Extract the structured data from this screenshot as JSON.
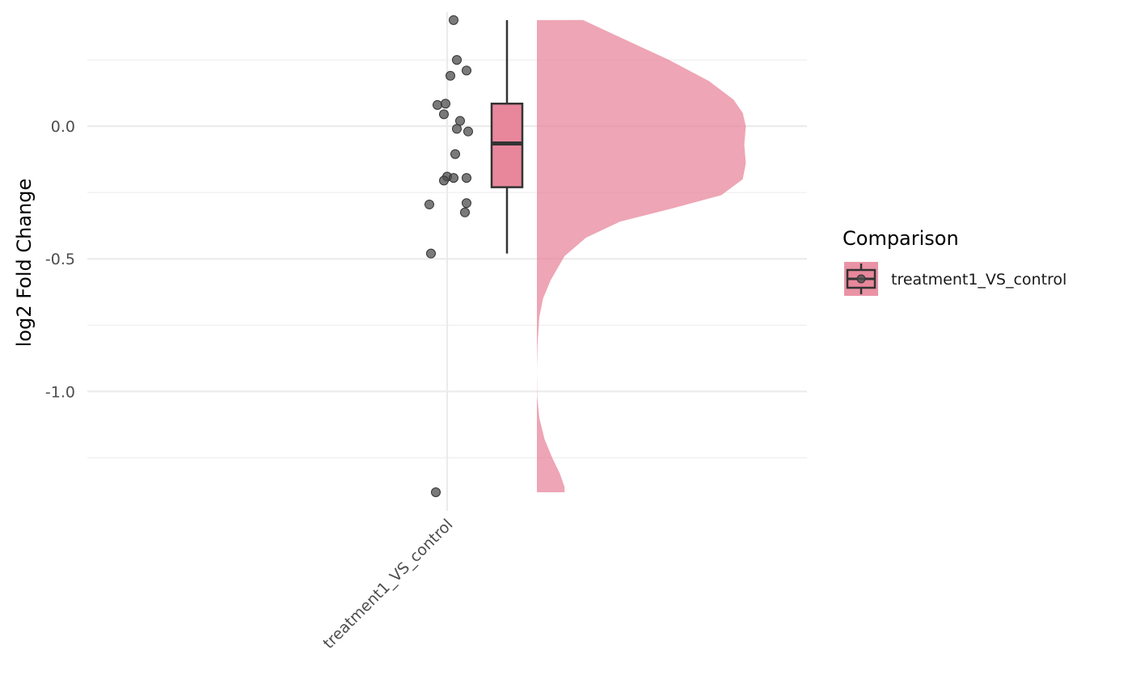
{
  "chart_data": {
    "type": "raincloud",
    "title": "",
    "xlabel": "",
    "ylabel": "log2 Fold Change",
    "ylim": [
      -1.45,
      0.43
    ],
    "y_ticks": [
      {
        "value": 0.0,
        "label": "0.0"
      },
      {
        "value": -0.5,
        "label": "-0.5"
      },
      {
        "value": -1.0,
        "label": "-1.0"
      }
    ],
    "y_minor_ticks": [
      0.25,
      -0.25,
      -0.75,
      -1.25
    ],
    "grid": true,
    "categories": [
      "treatment1_VS_control"
    ],
    "series": [
      {
        "name": "treatment1_VS_control",
        "color": "#e8879c",
        "points": [
          {
            "x": 0.02,
            "y": 0.4
          },
          {
            "x": 0.03,
            "y": 0.25
          },
          {
            "x": 0.06,
            "y": 0.21
          },
          {
            "x": 0.01,
            "y": 0.19
          },
          {
            "x": -0.03,
            "y": 0.08
          },
          {
            "x": -0.005,
            "y": 0.085
          },
          {
            "x": -0.01,
            "y": 0.045
          },
          {
            "x": 0.04,
            "y": 0.02
          },
          {
            "x": 0.03,
            "y": -0.01
          },
          {
            "x": 0.065,
            "y": -0.02
          },
          {
            "x": 0.025,
            "y": -0.105
          },
          {
            "x": 0.0,
            "y": -0.19
          },
          {
            "x": 0.02,
            "y": -0.195
          },
          {
            "x": 0.06,
            "y": -0.195
          },
          {
            "x": -0.01,
            "y": -0.205
          },
          {
            "x": 0.06,
            "y": -0.29
          },
          {
            "x": -0.055,
            "y": -0.295
          },
          {
            "x": 0.055,
            "y": -0.325
          },
          {
            "x": -0.05,
            "y": -0.48
          },
          {
            "x": -0.035,
            "y": -1.38
          }
        ],
        "box": {
          "min": -0.48,
          "q1": -0.23,
          "median": -0.065,
          "q3": 0.085,
          "max": 0.4
        },
        "density": [
          {
            "y": 0.4,
            "w": 0.15
          },
          {
            "y": 0.33,
            "w": 0.28
          },
          {
            "y": 0.25,
            "w": 0.43
          },
          {
            "y": 0.17,
            "w": 0.56
          },
          {
            "y": 0.1,
            "w": 0.64
          },
          {
            "y": 0.05,
            "w": 0.67
          },
          {
            "y": 0.0,
            "w": 0.68
          },
          {
            "y": -0.07,
            "w": 0.675
          },
          {
            "y": -0.14,
            "w": 0.68
          },
          {
            "y": -0.2,
            "w": 0.67
          },
          {
            "y": -0.26,
            "w": 0.6
          },
          {
            "y": -0.31,
            "w": 0.44
          },
          {
            "y": -0.36,
            "w": 0.27
          },
          {
            "y": -0.42,
            "w": 0.16
          },
          {
            "y": -0.49,
            "w": 0.09
          },
          {
            "y": -0.58,
            "w": 0.045
          },
          {
            "y": -0.65,
            "w": 0.02
          },
          {
            "y": -0.72,
            "w": 0.008
          },
          {
            "y": -0.82,
            "w": 0.002
          },
          {
            "y": -0.92,
            "w": 0.0
          },
          {
            "y": -1.02,
            "w": 0.001
          },
          {
            "y": -1.1,
            "w": 0.008
          },
          {
            "y": -1.18,
            "w": 0.025
          },
          {
            "y": -1.25,
            "w": 0.05
          },
          {
            "y": -1.31,
            "w": 0.075
          },
          {
            "y": -1.36,
            "w": 0.09
          },
          {
            "y": -1.38,
            "w": 0.09
          }
        ]
      }
    ],
    "legend": {
      "title": "Comparison",
      "placement": "right"
    }
  }
}
